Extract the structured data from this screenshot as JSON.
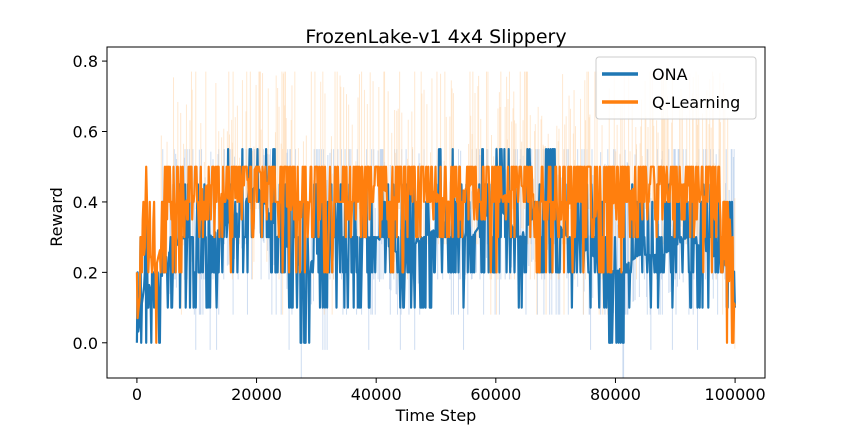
{
  "chart_data": {
    "type": "line",
    "title": "FrozenLake-v1 4x4 Slippery",
    "xlabel": "Time Step",
    "ylabel": "Reward",
    "xlim": [
      -5000,
      105000
    ],
    "ylim": [
      -0.1,
      0.84
    ],
    "xticks": [
      0,
      20000,
      40000,
      60000,
      80000,
      100000
    ],
    "xtick_labels": [
      "0",
      "20000",
      "40000",
      "60000",
      "80000",
      "100000"
    ],
    "yticks": [
      0.0,
      0.2,
      0.4,
      0.6,
      0.8
    ],
    "ytick_labels": [
      "0.0",
      "0.2",
      "0.4",
      "0.6",
      "0.8"
    ],
    "legend_position": "top-right",
    "grid": false,
    "series": [
      {
        "name": "ONA",
        "color": "#1f77b4",
        "band_color": "#aec7e8",
        "x": [
          0,
          1500,
          3000,
          5000,
          8000,
          12000,
          16000,
          20000,
          24000,
          28000,
          32000,
          36000,
          40000,
          44000,
          48000,
          52000,
          56000,
          60000,
          64000,
          68000,
          72000,
          76000,
          80000,
          84000,
          88000,
          92000,
          96000,
          100000
        ],
        "y": [
          0.0,
          0.2,
          0.1,
          0.25,
          0.3,
          0.3,
          0.35,
          0.45,
          0.3,
          0.2,
          0.3,
          0.3,
          0.3,
          0.25,
          0.3,
          0.35,
          0.3,
          0.4,
          0.3,
          0.4,
          0.3,
          0.25,
          0.2,
          0.25,
          0.25,
          0.3,
          0.25,
          0.2
        ]
      },
      {
        "name": "Q-Learning",
        "color": "#ff7f0e",
        "band_color": "#ffd8b0",
        "x": [
          0,
          1500,
          3000,
          5000,
          8000,
          12000,
          16000,
          20000,
          24000,
          28000,
          32000,
          36000,
          40000,
          44000,
          48000,
          52000,
          56000,
          60000,
          64000,
          68000,
          72000,
          76000,
          80000,
          84000,
          88000,
          92000,
          96000,
          100000
        ],
        "y": [
          0.05,
          0.3,
          0.2,
          0.35,
          0.4,
          0.45,
          0.4,
          0.5,
          0.4,
          0.35,
          0.4,
          0.4,
          0.45,
          0.4,
          0.45,
          0.4,
          0.45,
          0.4,
          0.45,
          0.4,
          0.4,
          0.35,
          0.4,
          0.45,
          0.45,
          0.45,
          0.4,
          0.1
        ]
      }
    ]
  }
}
